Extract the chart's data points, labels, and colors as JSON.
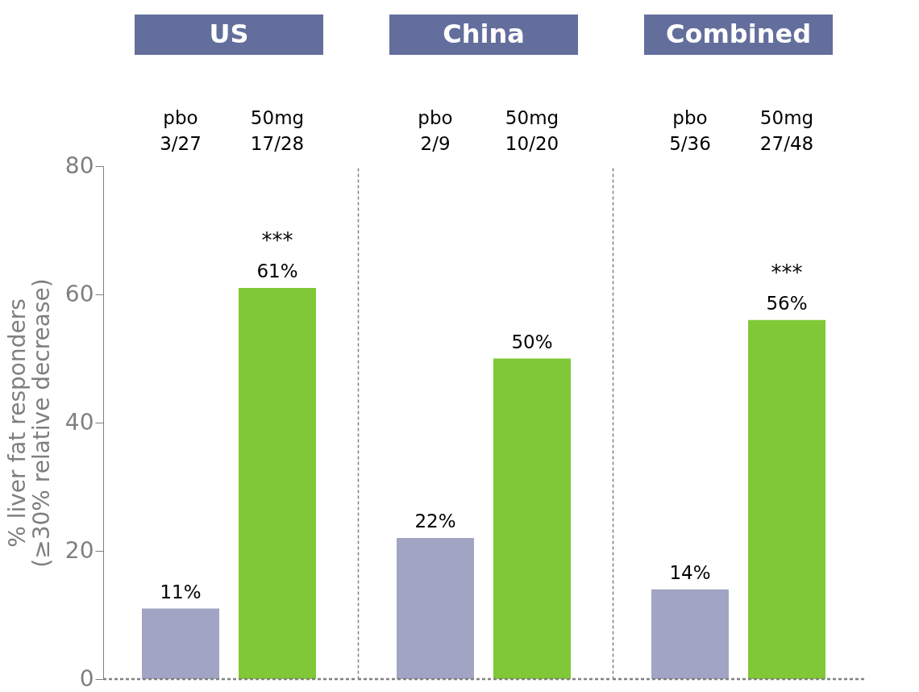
{
  "chart_data": [
    {
      "type": "bar",
      "title": "US",
      "ylabel": "% liver fat responders\n(≥30% relative decrease)",
      "categories": [
        "pbo\n3/27",
        "50mg\n17/28"
      ],
      "values": [
        11,
        61
      ],
      "colors": [
        "#a1a5c3",
        "#80c837"
      ],
      "value_labels": [
        "11%",
        "61%"
      ],
      "ylim": [
        0,
        80
      ],
      "yticks": [
        0,
        20,
        40,
        60,
        80
      ],
      "annotations": [
        {
          "text": "***",
          "x": "50mg\n17/28",
          "y": 61
        }
      ],
      "ref_lines": [
        {
          "axis": "y",
          "value": 0,
          "line_style": "dashed",
          "color": "#808080"
        }
      ]
    },
    {
      "type": "bar",
      "title": "China",
      "categories": [
        "pbo\n2/9",
        "50mg\n10/20"
      ],
      "values": [
        22,
        50
      ],
      "colors": [
        "#a1a5c3",
        "#80c837"
      ],
      "value_labels": [
        "22%",
        "50%"
      ],
      "ylim": [
        0,
        80
      ],
      "tick_labels": "x",
      "ref_lines": [
        {
          "axis": "y",
          "value": 0,
          "line_style": "dashed",
          "color": "#808080"
        }
      ]
    },
    {
      "type": "bar",
      "title": "Combined",
      "categories": [
        "pbo\n5/36",
        "50mg\n27/48"
      ],
      "values": [
        14,
        56
      ],
      "colors": [
        "#a1a5c3",
        "#80c837"
      ],
      "value_labels": [
        "14%",
        "56%"
      ],
      "ylim": [
        0,
        80
      ],
      "tick_labels": "x",
      "annotations": [
        {
          "text": "***",
          "x": "50mg\n27/48",
          "y": 56
        }
      ],
      "ref_lines": [
        {
          "axis": "y",
          "value": 0,
          "line_style": "dashed",
          "color": "#808080"
        }
      ]
    }
  ]
}
